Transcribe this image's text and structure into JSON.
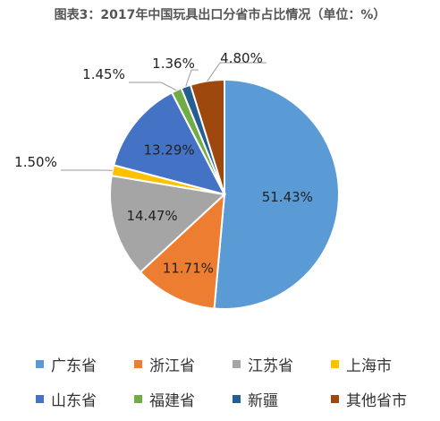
{
  "chart_data": {
    "type": "pie",
    "title": "图表3：2017年中国玩具出口分省市占比情况（单位：%）",
    "categories": [
      "广东省",
      "浙江省",
      "江苏省",
      "上海市",
      "山东省",
      "福建省",
      "新疆",
      "其他省市"
    ],
    "values": [
      51.43,
      11.71,
      14.47,
      1.5,
      13.29,
      1.45,
      1.36,
      4.8
    ],
    "labels": [
      "51.43%",
      "11.71%",
      "14.47%",
      "1.50%",
      "13.29%",
      "1.45%",
      "1.36%",
      "4.80%"
    ],
    "colors": [
      "#5B9BD5",
      "#ED7D31",
      "#A5A5A5",
      "#FFC000",
      "#4472C4",
      "#70AD47",
      "#255E91",
      "#9E480E"
    ],
    "legend_position": "bottom",
    "start_angle_deg": 0,
    "direction": "clockwise"
  }
}
